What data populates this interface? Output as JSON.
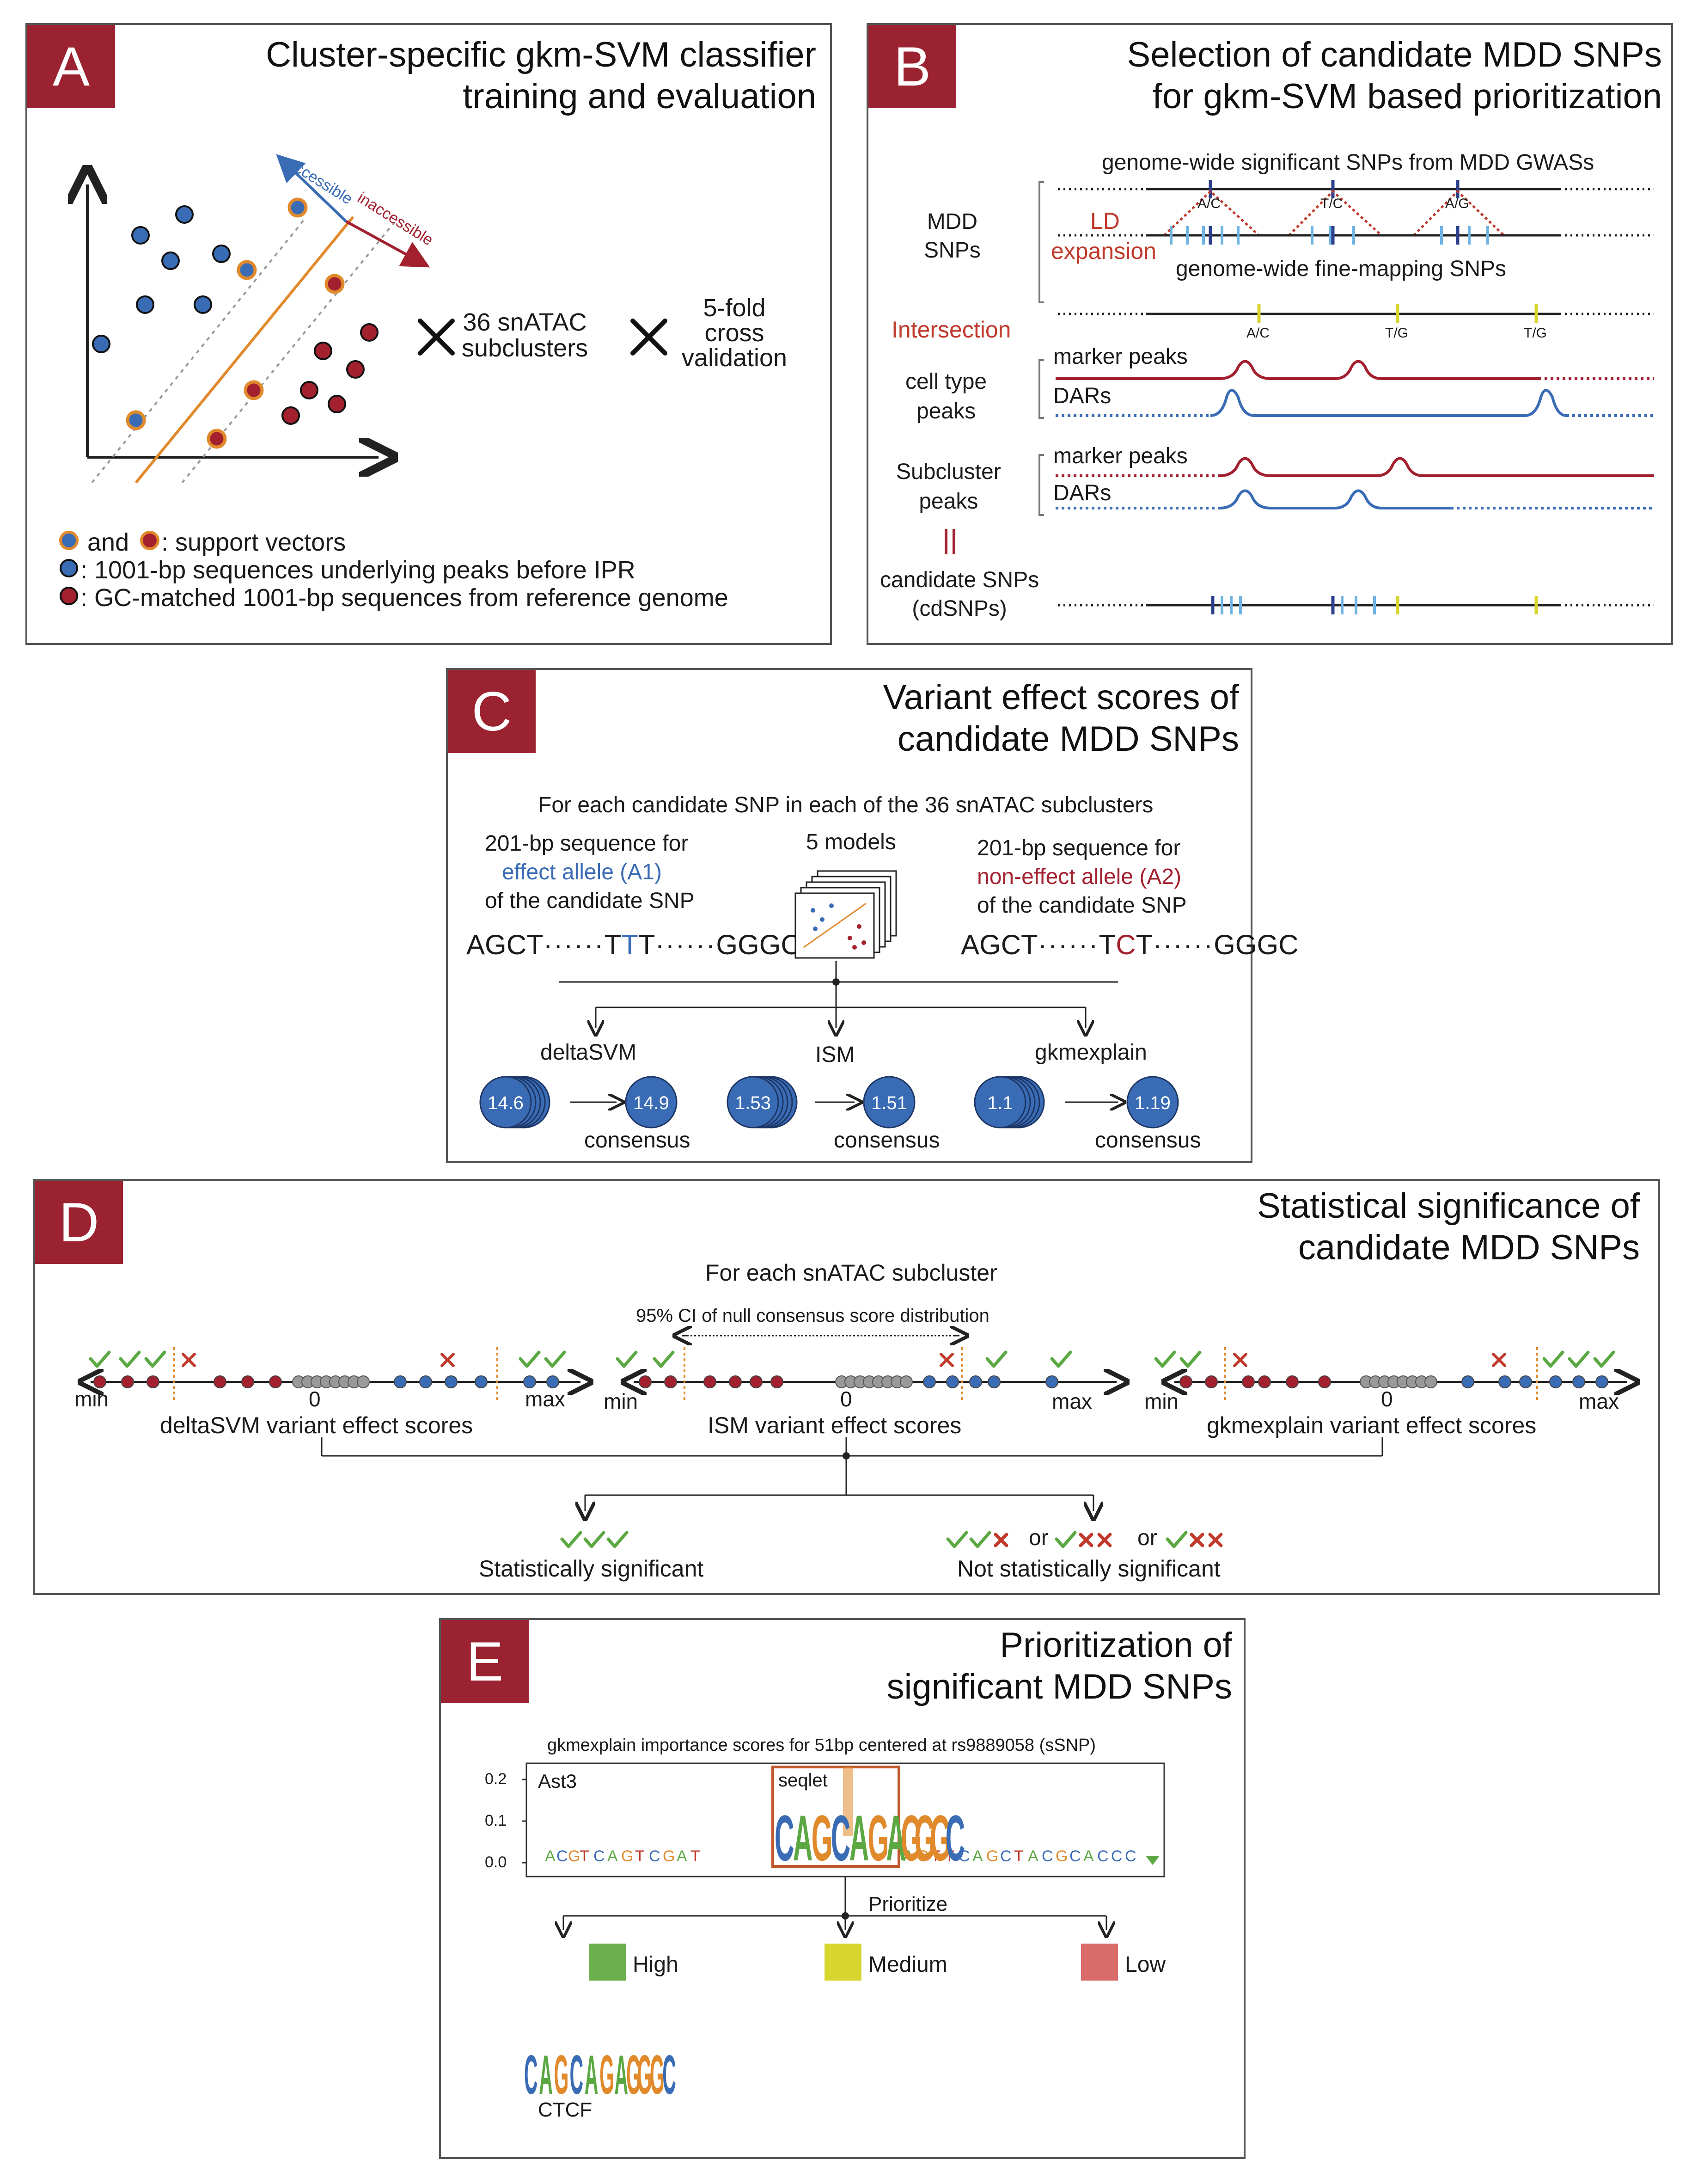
{
  "panels": {
    "A": {
      "letter": "A",
      "title_1": "Cluster-specific gkm-SVM classifier",
      "title_2": "training and evaluation",
      "label_accessible": "accessible",
      "label_inaccessible": "inaccessible",
      "times_1": "36 snATAC",
      "times_1b": "subclusters",
      "times_2": "5-fold",
      "times_2b": "cross",
      "times_2c": "validation",
      "legend_1a": "and",
      "legend_1b": ": support vectors",
      "legend_2": ": 1001-bp sequences underlying peaks before IPR",
      "legend_3": ": GC-matched 1001-bp sequences from reference genome"
    },
    "B": {
      "letter": "B",
      "title_1": "Selection of candidate MDD SNPs",
      "title_2": "for gkm-SVM based prioritization",
      "gwas_label": "genome-wide significant SNPs from MDD GWASs",
      "mdd_snps_1": "MDD",
      "mdd_snps_2": "SNPs",
      "ld_1": "LD",
      "ld_2": "expansion",
      "finemap_label": "genome-wide fine-mapping SNPs",
      "allele_ac_top": "A/C",
      "allele_tc_top": "T/C",
      "allele_ag_top": "A/G",
      "allele_ac_bot": "A/C",
      "allele_tg_1": "T/G",
      "allele_tg_2": "T/G",
      "intersection": "Intersection",
      "celltype_1": "cell type",
      "celltype_2": "peaks",
      "marker_peaks_1": "marker peaks",
      "dars_1": "DARs",
      "subcluster_1": "Subcluster",
      "subcluster_2": "peaks",
      "marker_peaks_2": "marker peaks",
      "dars_2": "DARs",
      "equals": "||",
      "cand_1": "candidate SNPs",
      "cand_2": "(cdSNPs)"
    },
    "C": {
      "letter": "C",
      "title_1": "Variant effect scores of",
      "title_2": "candidate MDD SNPs",
      "header": "For each candidate SNP in each of the 36 snATAC subclusters",
      "left_1": "201-bp sequence for",
      "left_2": "effect allele (A1)",
      "left_3": "of the candidate SNP",
      "models": "5 models",
      "right_1": "201-bp sequence for",
      "right_2": "non-effect allele (A2)",
      "right_3": "of the candidate SNP",
      "seq_left_a": "AGCT",
      "seq_left_b": "T",
      "seq_left_c": "T",
      "seq_left_d": "T",
      "seq_left_e": "GGGC",
      "seq_right_a": "AGCT",
      "seq_right_b": "T",
      "seq_right_c": "C",
      "seq_right_d": "T",
      "seq_right_e": "GGGC",
      "method_1": "deltaSVM",
      "method_2": "ISM",
      "method_3": "gkmexplain",
      "score_1a": "14.6",
      "score_1b": "14.9",
      "score_2a": "1.53",
      "score_2b": "1.51",
      "score_3a": "1.1",
      "score_3b": "1.19",
      "consensus": "consensus"
    },
    "D": {
      "letter": "D",
      "title_1": "Statistical significance of",
      "title_2": "candidate MDD SNPs",
      "header": "For each snATAC subcluster",
      "ci_label": "95% CI of null consensus score distribution",
      "min": "min",
      "max": "max",
      "zero": "0",
      "axis_1": "deltaSVM variant effect scores",
      "axis_2": "ISM variant effect scores",
      "axis_3": "gkmexplain variant effect scores",
      "or": "or",
      "significant": "Statistically significant",
      "not_significant": "Not statistically significant"
    },
    "E": {
      "letter": "E",
      "title_1": "Prioritization of",
      "title_2": "significant MDD SNPs",
      "plot_title": "gkmexplain importance scores for 51bp centered at rs9889058 (sSNP)",
      "cell": "Ast3",
      "seqlet": "seqlet",
      "ytick_1": "0.2",
      "ytick_2": "0.1",
      "ytick_3": "0.0",
      "prioritize": "Prioritize",
      "high": "High",
      "medium": "Medium",
      "low": "Low",
      "ctcf": "CTCF",
      "motif_text": "CAGCAGAGGGC"
    }
  },
  "colors": {
    "badge": "#9b2230",
    "blue": "#3a6cb5",
    "red": "#a3202f",
    "orange": "#e08a2c",
    "green": "#5ba843",
    "yellow": "#d8d62e",
    "pink": "#d96b6b",
    "lightblue": "#6fb4e3"
  }
}
